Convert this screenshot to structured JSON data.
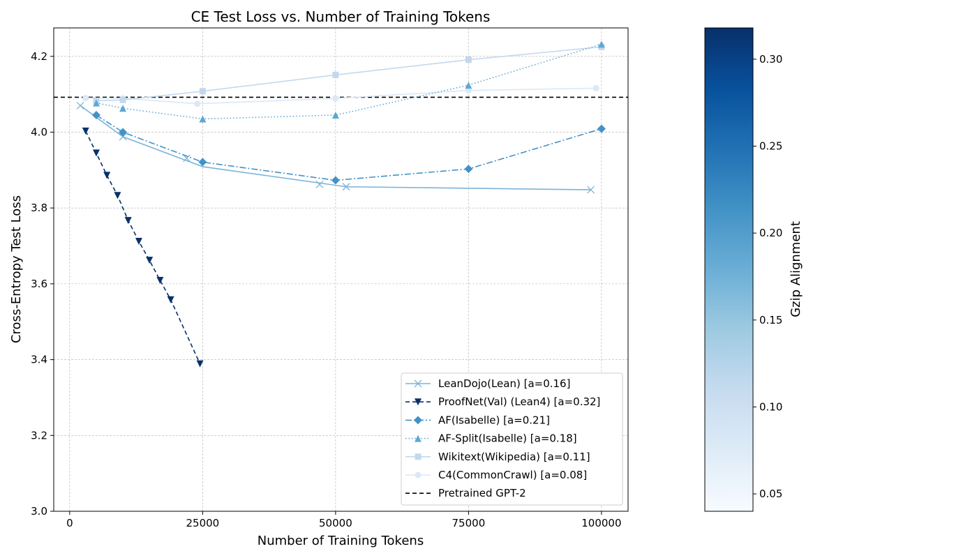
{
  "chart_data": {
    "type": "line",
    "title": "CE Test Loss vs. Number of Training Tokens",
    "xlabel": "Number of Training Tokens",
    "ylabel": "Cross-Entropy Test Loss",
    "xlim": [
      -3000,
      105000
    ],
    "ylim": [
      3.0,
      4.275
    ],
    "xticks": [
      0,
      25000,
      50000,
      75000,
      100000
    ],
    "xtick_labels": [
      "0",
      "25000",
      "50000",
      "75000",
      "100000"
    ],
    "yticks": [
      3.0,
      3.2,
      3.4,
      3.6,
      3.8,
      4.0,
      4.2
    ],
    "ytick_labels": [
      "3.0",
      "3.2",
      "3.4",
      "3.6",
      "3.8",
      "4.0",
      "4.2"
    ],
    "grid": true,
    "legend_position": "lower-right",
    "series": [
      {
        "name": "LeanDojo(Lean) [a=0.16]",
        "color": "#7bb4d9",
        "linestyle": "solid",
        "marker": "x",
        "line": {
          "x": [
            2000,
            10000,
            25000,
            52000,
            98000
          ],
          "y": [
            4.07,
            3.988,
            3.909,
            3.856,
            3.848
          ]
        },
        "markers": {
          "x": [
            2000,
            10000,
            22000,
            47000,
            52000,
            98000
          ],
          "y": [
            4.07,
            3.988,
            3.931,
            3.862,
            3.856,
            3.848
          ]
        }
      },
      {
        "name": "ProofNet(Val) (Lean4) [a=0.32]",
        "color": "#08306b",
        "linestyle": "dashed",
        "marker": "v",
        "line": {
          "x": [
            3000,
            5000,
            7000,
            9000,
            11000,
            13000,
            15000,
            17000,
            19000,
            24500
          ],
          "y": [
            4.003,
            3.945,
            3.886,
            3.833,
            3.767,
            3.712,
            3.662,
            3.609,
            3.558,
            3.389
          ]
        },
        "markers": {
          "x": [
            3000,
            5000,
            7000,
            9000,
            11000,
            13000,
            15000,
            17000,
            19000,
            24500
          ],
          "y": [
            4.003,
            3.945,
            3.886,
            3.833,
            3.767,
            3.712,
            3.662,
            3.609,
            3.558,
            3.389
          ]
        }
      },
      {
        "name": "AF(Isabelle) [a=0.21]",
        "color": "#4392c6",
        "linestyle": "dashdot",
        "marker": "D",
        "line": {
          "x": [
            5000,
            10000,
            25000,
            50000,
            75000,
            100000
          ],
          "y": [
            4.045,
            4.0,
            3.921,
            3.873,
            3.903,
            4.009
          ]
        },
        "markers": {
          "x": [
            5000,
            10000,
            25000,
            50000,
            75000,
            100000
          ],
          "y": [
            4.045,
            4.0,
            3.921,
            3.873,
            3.903,
            4.009
          ]
        }
      },
      {
        "name": "AF-Split(Isabelle) [a=0.18]",
        "color": "#5ea8d3",
        "linestyle": "dotted",
        "marker": "^",
        "line": {
          "x": [
            5000,
            10000,
            25000,
            50000,
            75000,
            100000
          ],
          "y": [
            4.077,
            4.063,
            4.035,
            4.045,
            4.124,
            4.232
          ]
        },
        "markers": {
          "x": [
            5000,
            10000,
            25000,
            50000,
            75000,
            100000
          ],
          "y": [
            4.077,
            4.063,
            4.035,
            4.045,
            4.124,
            4.232
          ]
        }
      },
      {
        "name": "Wikitext(Wikipedia) [a=0.11]",
        "color": "#c3d8ee",
        "linestyle": "solid",
        "marker": "s",
        "line": {
          "x": [
            5000,
            10000,
            25000,
            50000,
            75000,
            100000
          ],
          "y": [
            4.083,
            4.085,
            4.108,
            4.151,
            4.191,
            4.225
          ]
        },
        "markers": {
          "x": [
            5000,
            10000,
            25000,
            50000,
            75000,
            100000
          ],
          "y": [
            4.083,
            4.085,
            4.108,
            4.151,
            4.191,
            4.225
          ]
        }
      },
      {
        "name": "C4(CommonCrawl) [a=0.08]",
        "color": "#dbe8f6",
        "linestyle": "solid",
        "marker": "o",
        "line": {
          "x": [
            3000,
            10000,
            24000,
            50000,
            75000,
            99000
          ],
          "y": [
            4.09,
            4.089,
            4.075,
            4.089,
            4.11,
            4.116
          ]
        },
        "markers": {
          "x": [
            3000,
            10000,
            24000,
            50000,
            75000,
            99000
          ],
          "y": [
            4.09,
            4.089,
            4.075,
            4.089,
            4.11,
            4.116
          ]
        }
      }
    ],
    "reference_line": {
      "name": "Pretrained GPT-2",
      "y": 4.092,
      "color": "#000000",
      "linestyle": "dashed"
    },
    "colorbar": {
      "label": "Gzip Alignment",
      "range": [
        0.04,
        0.318
      ],
      "ticks": [
        0.05,
        0.1,
        0.15,
        0.2,
        0.25,
        0.3
      ],
      "tick_labels": [
        "0.05",
        "0.10",
        "0.15",
        "0.20",
        "0.25",
        "0.30"
      ],
      "colormap": [
        "#f7fbff",
        "#deebf7",
        "#c6dbef",
        "#9ecae1",
        "#6baed6",
        "#4292c6",
        "#2171b5",
        "#08519c",
        "#08306b"
      ]
    }
  }
}
